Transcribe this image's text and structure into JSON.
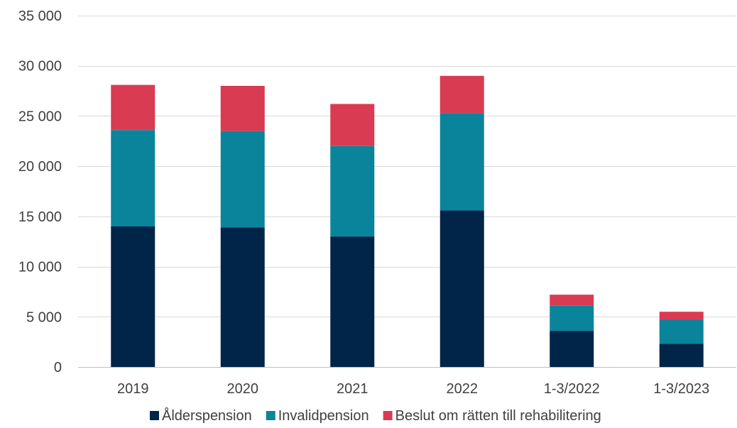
{
  "chart_data": {
    "type": "bar",
    "stacked": true,
    "categories": [
      "2019",
      "2020",
      "2021",
      "2022",
      "1-3/2022",
      "1-3/2023"
    ],
    "series": [
      {
        "name": "Ålderspension",
        "color": "#002548",
        "values": [
          14000,
          13900,
          13000,
          15600,
          3600,
          2300
        ]
      },
      {
        "name": "Invalidpension",
        "color": "#0a849b",
        "values": [
          9600,
          9600,
          9000,
          9700,
          2500,
          2400
        ]
      },
      {
        "name": "Beslut om rätten till rehabilitering",
        "color": "#d93b53",
        "values": [
          4500,
          4500,
          4200,
          3700,
          1100,
          800
        ]
      }
    ],
    "y_ticks": [
      0,
      5000,
      10000,
      15000,
      20000,
      25000,
      30000,
      35000
    ],
    "y_tick_labels": [
      "0",
      "5 000",
      "10 000",
      "15 000",
      "20 000",
      "25 000",
      "30 000",
      "35 000"
    ],
    "ylim": [
      0,
      35000
    ],
    "grid": true,
    "legend_position": "bottom"
  }
}
